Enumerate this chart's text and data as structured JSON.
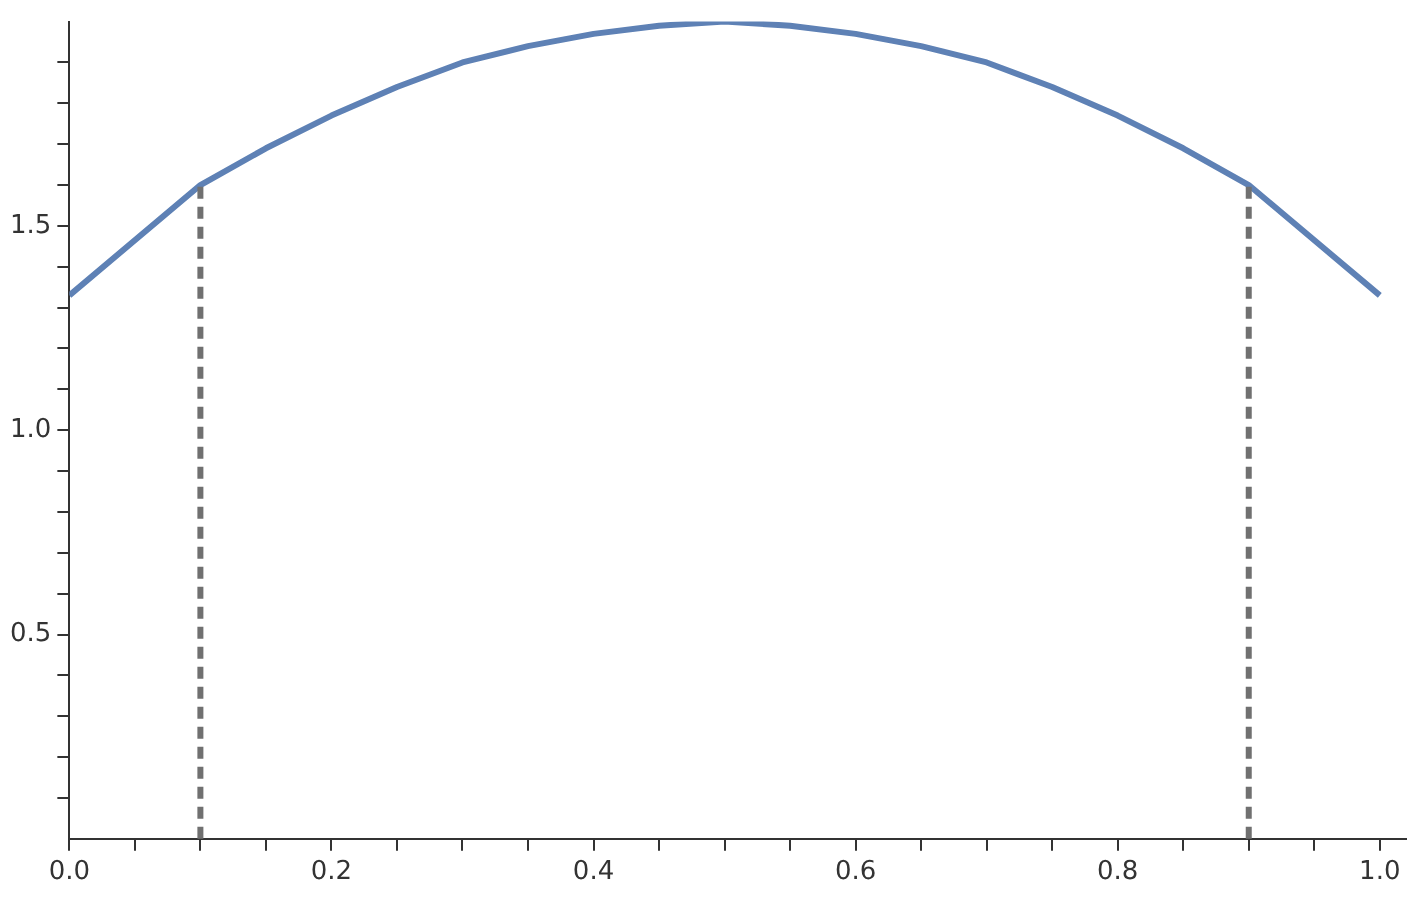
{
  "chart_data": {
    "type": "line",
    "xlim": [
      0,
      1.02
    ],
    "ylim": [
      0,
      2
    ],
    "xticks": [
      {
        "value": 0,
        "label": "0.0"
      },
      {
        "value": 0.05,
        "label": null
      },
      {
        "value": 0.1,
        "label": null
      },
      {
        "value": 0.15,
        "label": null
      },
      {
        "value": 0.2,
        "label": "0.2"
      },
      {
        "value": 0.25,
        "label": null
      },
      {
        "value": 0.3,
        "label": null
      },
      {
        "value": 0.35,
        "label": null
      },
      {
        "value": 0.4,
        "label": "0.4"
      },
      {
        "value": 0.45,
        "label": null
      },
      {
        "value": 0.5,
        "label": null
      },
      {
        "value": 0.55,
        "label": null
      },
      {
        "value": 0.6,
        "label": "0.6"
      },
      {
        "value": 0.65,
        "label": null
      },
      {
        "value": 0.7,
        "label": null
      },
      {
        "value": 0.75,
        "label": null
      },
      {
        "value": 0.8,
        "label": "0.8"
      },
      {
        "value": 0.85,
        "label": null
      },
      {
        "value": 0.9,
        "label": null
      },
      {
        "value": 0.95,
        "label": null
      },
      {
        "value": 1,
        "label": "1.0"
      }
    ],
    "yticks": [
      {
        "value": 0.1,
        "label": null
      },
      {
        "value": 0.2,
        "label": null
      },
      {
        "value": 0.3,
        "label": null
      },
      {
        "value": 0.4,
        "label": null
      },
      {
        "value": 0.5,
        "label": "0.5"
      },
      {
        "value": 0.6,
        "label": null
      },
      {
        "value": 0.7,
        "label": null
      },
      {
        "value": 0.8,
        "label": null
      },
      {
        "value": 0.9,
        "label": null
      },
      {
        "value": 1,
        "label": "1.0"
      },
      {
        "value": 1.1,
        "label": null
      },
      {
        "value": 1.2,
        "label": null
      },
      {
        "value": 1.3,
        "label": null
      },
      {
        "value": 1.4,
        "label": null
      },
      {
        "value": 1.5,
        "label": "1.5"
      },
      {
        "value": 1.6,
        "label": null
      },
      {
        "value": 1.7,
        "label": null
      },
      {
        "value": 1.8,
        "label": null
      },
      {
        "value": 1.9,
        "label": null
      }
    ],
    "grid": false,
    "legend": false,
    "marker": "none",
    "series": [
      {
        "color": "#5e81b5",
        "line_style": "solid",
        "x": [
          0,
          0.1,
          0.15,
          0.2,
          0.25,
          0.3,
          0.35,
          0.4,
          0.45,
          0.5,
          0.55,
          0.6,
          0.65,
          0.7,
          0.75,
          0.8,
          0.85,
          0.9,
          1
        ],
        "values": [
          1.33,
          1.6,
          1.69,
          1.77,
          1.84,
          1.9,
          1.94,
          1.97,
          1.99,
          2,
          1.99,
          1.97,
          1.94,
          1.9,
          1.84,
          1.77,
          1.69,
          1.6,
          1.33
        ]
      }
    ],
    "ref_lines": [
      {
        "axis": "x",
        "value": 0.1,
        "color": "#707070",
        "line_style": "dashed"
      },
      {
        "axis": "x",
        "value": 0.9,
        "color": "#707070",
        "line_style": "dashed"
      }
    ]
  }
}
